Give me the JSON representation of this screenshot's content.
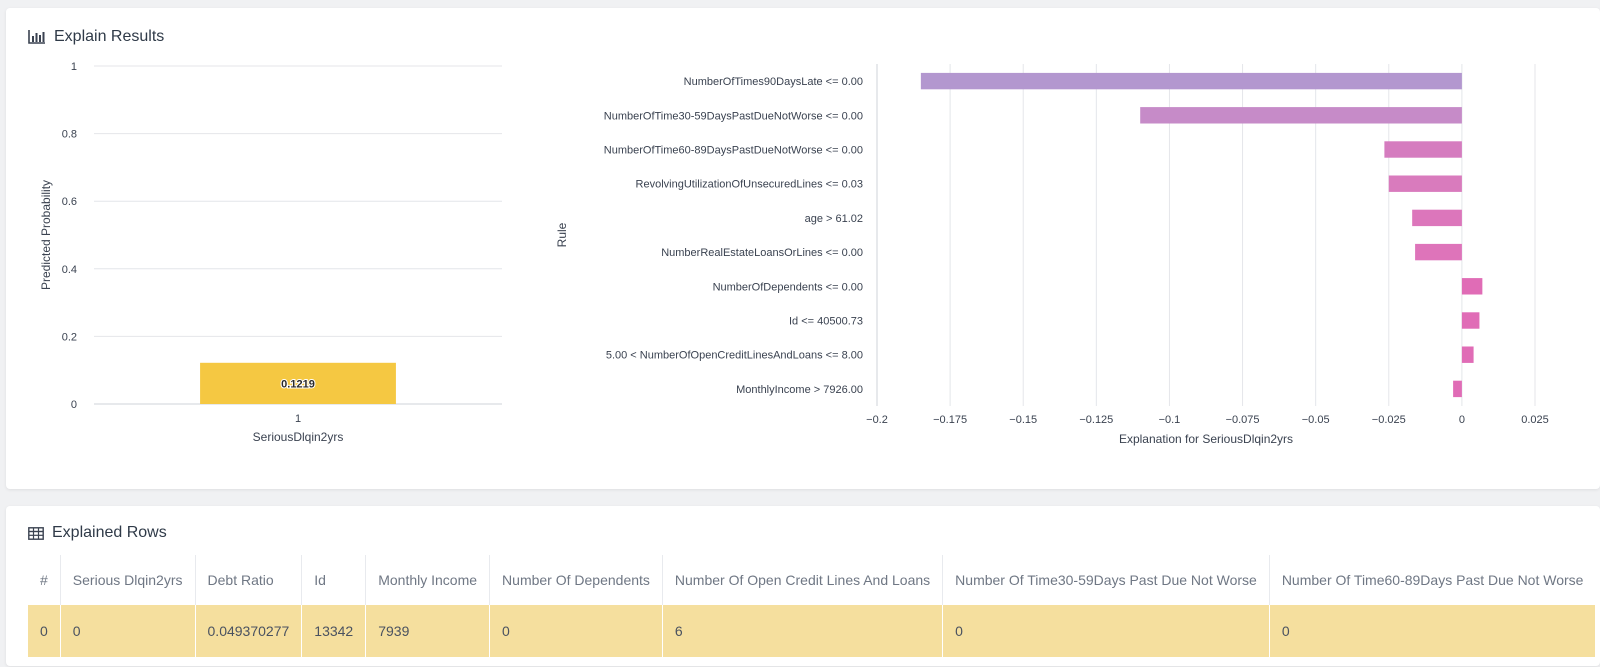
{
  "explain": {
    "title": "Explain Results",
    "icon": "bar-chart-icon"
  },
  "rows_panel": {
    "title": "Explained Rows",
    "icon": "table-icon",
    "columns": [
      "#",
      "Serious Dlqin2yrs",
      "Debt Ratio",
      "Id",
      "Monthly Income",
      "Number Of Dependents",
      "Number Of Open Credit Lines And Loans",
      "Number Of Time30-59Days Past Due Not Worse",
      "Number Of Time60-89Days Past Due Not Worse"
    ],
    "rows": [
      [
        "0",
        "0",
        "0.049370277",
        "13342",
        "7939",
        "0",
        "6",
        "0",
        "0"
      ]
    ],
    "highlight_color": "#f5df9e"
  },
  "chart_data": [
    {
      "type": "bar",
      "categories": [
        "1"
      ],
      "values": [
        0.1219
      ],
      "data_labels": [
        "0.1219"
      ],
      "xlabel": "SeriousDlqin2yrs",
      "ylabel": "Predicted Probability",
      "ylim": [
        0,
        1
      ],
      "yticks": [
        "0",
        "0.2",
        "0.4",
        "0.6",
        "0.8",
        "1"
      ],
      "grid": true,
      "bar_color": "#f5c842"
    },
    {
      "type": "bar",
      "orientation": "horizontal",
      "categories": [
        "NumberOfTimes90DaysLate <= 0.00",
        "NumberOfTime30-59DaysPastDueNotWorse <= 0.00",
        "NumberOfTime60-89DaysPastDueNotWorse <= 0.00",
        "RevolvingUtilizationOfUnsecuredLines <= 0.03",
        "age > 61.02",
        "NumberRealEstateLoansOrLines <= 0.00",
        "NumberOfDependents <= 0.00",
        "Id <= 40500.73",
        "5.00 < NumberOfOpenCreditLinesAndLoans <= 8.00",
        "MonthlyIncome > 7926.00"
      ],
      "values": [
        -0.185,
        -0.11,
        -0.0265,
        -0.025,
        -0.017,
        -0.016,
        0.007,
        0.006,
        0.004,
        -0.003
      ],
      "xlabel": "Explanation for SeriousDlqin2yrs",
      "ylabel": "Rule",
      "xlim": [
        -0.2,
        0.025
      ],
      "xticks": [
        "−0.2",
        "−0.175",
        "−0.15",
        "−0.125",
        "−0.1",
        "−0.075",
        "−0.05",
        "−0.025",
        "0",
        "0.025"
      ],
      "grid": true,
      "bar_colors": [
        "#b397cf",
        "#c68bc8",
        "#d57cbf",
        "#d97bbd",
        "#dc76bb",
        "#de74ba",
        "#e06cb6",
        "#e06cb6",
        "#e06cb6",
        "#e06cb6"
      ]
    }
  ]
}
